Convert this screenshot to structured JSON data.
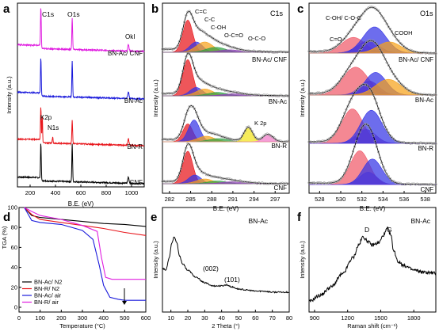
{
  "colors": {
    "black": "#000000",
    "red": "#e8151b",
    "blue": "#1a1adb",
    "magenta": "#e01ee0",
    "fit_red": "#e8151b",
    "fit_blue": "#3535e6",
    "fit_orange": "#f7a21b",
    "fit_green": "#2ea043",
    "fit_purple": "#8e3fb5",
    "fit_yellow": "#f3e51a",
    "fit_pink": "#f178c7",
    "fit_coral": "#f05a6a",
    "dot": "#9c9c9c"
  },
  "chart_data": [
    {
      "panel": "a",
      "type": "line",
      "xlabel": "B.E. (eV)",
      "ylabel": "Intensity (a.u.)",
      "xlim": [
        100,
        1100
      ],
      "xticks": [
        200,
        400,
        600,
        800,
        1000
      ],
      "annotations": [
        "C1s",
        "O1s",
        "OkI",
        "K2p",
        "N1s"
      ],
      "series": [
        {
          "name": "CNF",
          "color": "#000000",
          "baseline": 0,
          "c1s": 0.9,
          "o1s": 0.95
        },
        {
          "name": "BN-R",
          "color": "#e8151b",
          "baseline": 1,
          "c1s": 0.85,
          "o1s": 0.6
        },
        {
          "name": "BN-Ac",
          "color": "#1a1adb",
          "baseline": 2,
          "c1s": 0.9,
          "o1s": 0.9
        },
        {
          "name": "BN-Ac/ CNF",
          "color": "#e01ee0",
          "baseline": 3,
          "c1s": 1.0,
          "o1s": 0.8
        }
      ]
    },
    {
      "panel": "b",
      "type": "line",
      "title": "C1s",
      "xlabel": "B.E. (eV)",
      "ylabel": "Intensity (a.u.)",
      "xlim": [
        281,
        299
      ],
      "xticks": [
        282,
        285,
        288,
        291,
        294,
        297
      ],
      "annotations": [
        "C=C",
        "C-C",
        "C-OH",
        "O-C=O",
        "O-C-O",
        "K 2p"
      ],
      "series": [
        "BN-Ac/ CNF",
        "BN-Ac",
        "BN-R",
        "CNF"
      ]
    },
    {
      "panel": "c",
      "type": "line",
      "title": "O1s",
      "xlabel": "B.E. (eV)",
      "ylabel": "Intensity (a.u.)",
      "xlim": [
        527,
        539
      ],
      "xticks": [
        528,
        530,
        532,
        534,
        536,
        538
      ],
      "annotations": [
        "C-OH/ C-O-C",
        "COOH",
        "C=O"
      ],
      "series": [
        "BN-Ac/ CNF",
        "BN-Ac",
        "BN-R",
        "CNF"
      ]
    },
    {
      "panel": "d",
      "type": "line",
      "xlabel": "Temperature (°C)",
      "ylabel": "TGA (%)",
      "xlim": [
        0,
        600
      ],
      "ylim": [
        0,
        100
      ],
      "xticks": [
        0,
        100,
        200,
        300,
        400,
        500,
        600
      ],
      "yticks": [
        0,
        20,
        40,
        60,
        80,
        100
      ],
      "legend": "bottom-left",
      "series": [
        {
          "name": "BN-Ac/ N2",
          "color": "#000000",
          "x": [
            25,
            60,
            100,
            200,
            300,
            400,
            500,
            600
          ],
          "y": [
            100,
            92,
            90,
            88,
            86,
            84,
            83,
            81
          ]
        },
        {
          "name": "BN-R/ N2",
          "color": "#e8151b",
          "x": [
            25,
            60,
            100,
            200,
            300,
            400,
            500,
            600
          ],
          "y": [
            100,
            93,
            88,
            85,
            82,
            79,
            75,
            72
          ]
        },
        {
          "name": "BN-Ac/ air",
          "color": "#1a1adb",
          "x": [
            25,
            60,
            100,
            200,
            300,
            350,
            380,
            400,
            430,
            470,
            500,
            600
          ],
          "y": [
            100,
            87,
            85,
            83,
            77,
            68,
            42,
            22,
            10,
            8,
            7,
            7
          ]
        },
        {
          "name": "BN-R/ air",
          "color": "#e01ee0",
          "x": [
            25,
            60,
            100,
            200,
            300,
            370,
            390,
            410,
            440,
            500,
            600
          ],
          "y": [
            100,
            96,
            92,
            88,
            82,
            76,
            50,
            30,
            28,
            28,
            28
          ]
        }
      ]
    },
    {
      "panel": "e",
      "type": "line",
      "xlabel": "2 Theta (°)",
      "ylabel": "Intensity (a.u.)",
      "title": "BN-Ac",
      "xlim": [
        5,
        80
      ],
      "xticks": [
        10,
        20,
        30,
        40,
        50,
        60,
        70,
        80
      ],
      "annotations": [
        "(002)",
        "(101)"
      ],
      "series": [
        {
          "name": "BN-Ac",
          "color": "#000000",
          "x": [
            5,
            7,
            9,
            10.5,
            12,
            13.5,
            15,
            17,
            20,
            25,
            30,
            35,
            40,
            43,
            46,
            50,
            55,
            60,
            65,
            70,
            75,
            80
          ],
          "y": [
            42,
            40,
            52,
            66,
            72,
            66,
            54,
            46,
            40,
            33,
            28,
            25,
            25,
            26,
            24,
            22,
            21,
            20,
            20,
            19,
            19,
            19
          ]
        }
      ]
    },
    {
      "panel": "f",
      "type": "line",
      "xlabel": "Raman shift (cm⁻¹)",
      "ylabel": "Intensity (a.u.)",
      "title": "BN-Ac",
      "xlim": [
        850,
        2000
      ],
      "xticks": [
        900,
        1200,
        1500,
        1800
      ],
      "annotations": [
        "D",
        "G"
      ],
      "series": [
        {
          "name": "BN-Ac",
          "color": "#000000",
          "x": [
            850,
            950,
            1050,
            1150,
            1250,
            1300,
            1340,
            1380,
            1420,
            1480,
            1530,
            1560,
            1590,
            1620,
            1660,
            1720,
            1800,
            1900,
            2000
          ],
          "y": [
            10,
            16,
            24,
            36,
            52,
            64,
            72,
            68,
            64,
            66,
            74,
            80,
            74,
            58,
            48,
            44,
            40,
            38,
            37
          ]
        }
      ]
    }
  ],
  "labels": {
    "a": {
      "letter": "a",
      "xlabel": "B.E. (eV)",
      "ylabel": "Intensity (a.u.)",
      "ticks": [
        "200",
        "400",
        "600",
        "800",
        "1000"
      ],
      "c1s": "C1s",
      "o1s": "O1s",
      "oki": "OkI",
      "k2p": "K2p",
      "n1s": "N1s",
      "s4": "BN-Ac/ CNF",
      "s3": "BN-Ac",
      "s2": "BN-R",
      "s1": "CNF"
    },
    "b": {
      "letter": "b",
      "title": "C1s",
      "xlabel": "B.E. (eV)",
      "ylabel": "Intensity (a.u.)",
      "ticks": [
        "282",
        "285",
        "288",
        "291",
        "294",
        "297"
      ],
      "cc2": "C=C",
      "cc1": "C-C",
      "coh": "C-OH",
      "oco": "O-C=O",
      "oco2": "O-C-O",
      "k2p": "K 2p",
      "s4": "BN-Ac/ CNF",
      "s3": "BN-Ac",
      "s2": "BN-R",
      "s1": "CNF"
    },
    "c": {
      "letter": "c",
      "title": "O1s",
      "xlabel": "B.E. (eV)",
      "ylabel": "Intensity (a.u.)",
      "ticks": [
        "528",
        "530",
        "532",
        "534",
        "536",
        "538"
      ],
      "cohcoc": "C-OH/ C-O-C",
      "cooh": "COOH",
      "co": "C=O",
      "s4": "BN-Ac/ CNF",
      "s3": "BN-Ac",
      "s2": "BN-R",
      "s1": "CNF"
    },
    "d": {
      "letter": "d",
      "xlabel": "Temperature (°C)",
      "ylabel": "TGA (%)",
      "xticks": [
        "0",
        "100",
        "200",
        "300",
        "400",
        "500",
        "600"
      ],
      "yticks": [
        "0",
        "20",
        "40",
        "60",
        "80",
        "100"
      ],
      "legend": [
        "BN-Ac/ N2",
        "BN-R/ N2",
        "BN-Ac/ air",
        "BN-R/ air"
      ]
    },
    "e": {
      "letter": "e",
      "title": "BN-Ac",
      "xlabel": "2 Theta (°)",
      "ylabel": "Intensity (a.u.)",
      "ticks": [
        "10",
        "20",
        "30",
        "40",
        "50",
        "60",
        "70",
        "80"
      ],
      "p002": "(002)",
      "p101": "(101)"
    },
    "f": {
      "letter": "f",
      "title": "BN-Ac",
      "xlabel": "Raman shift (cm⁻¹)",
      "ylabel": "Intensity (a.u.)",
      "ticks": [
        "900",
        "1200",
        "1500",
        "1800"
      ],
      "d": "D",
      "g": "G"
    }
  }
}
